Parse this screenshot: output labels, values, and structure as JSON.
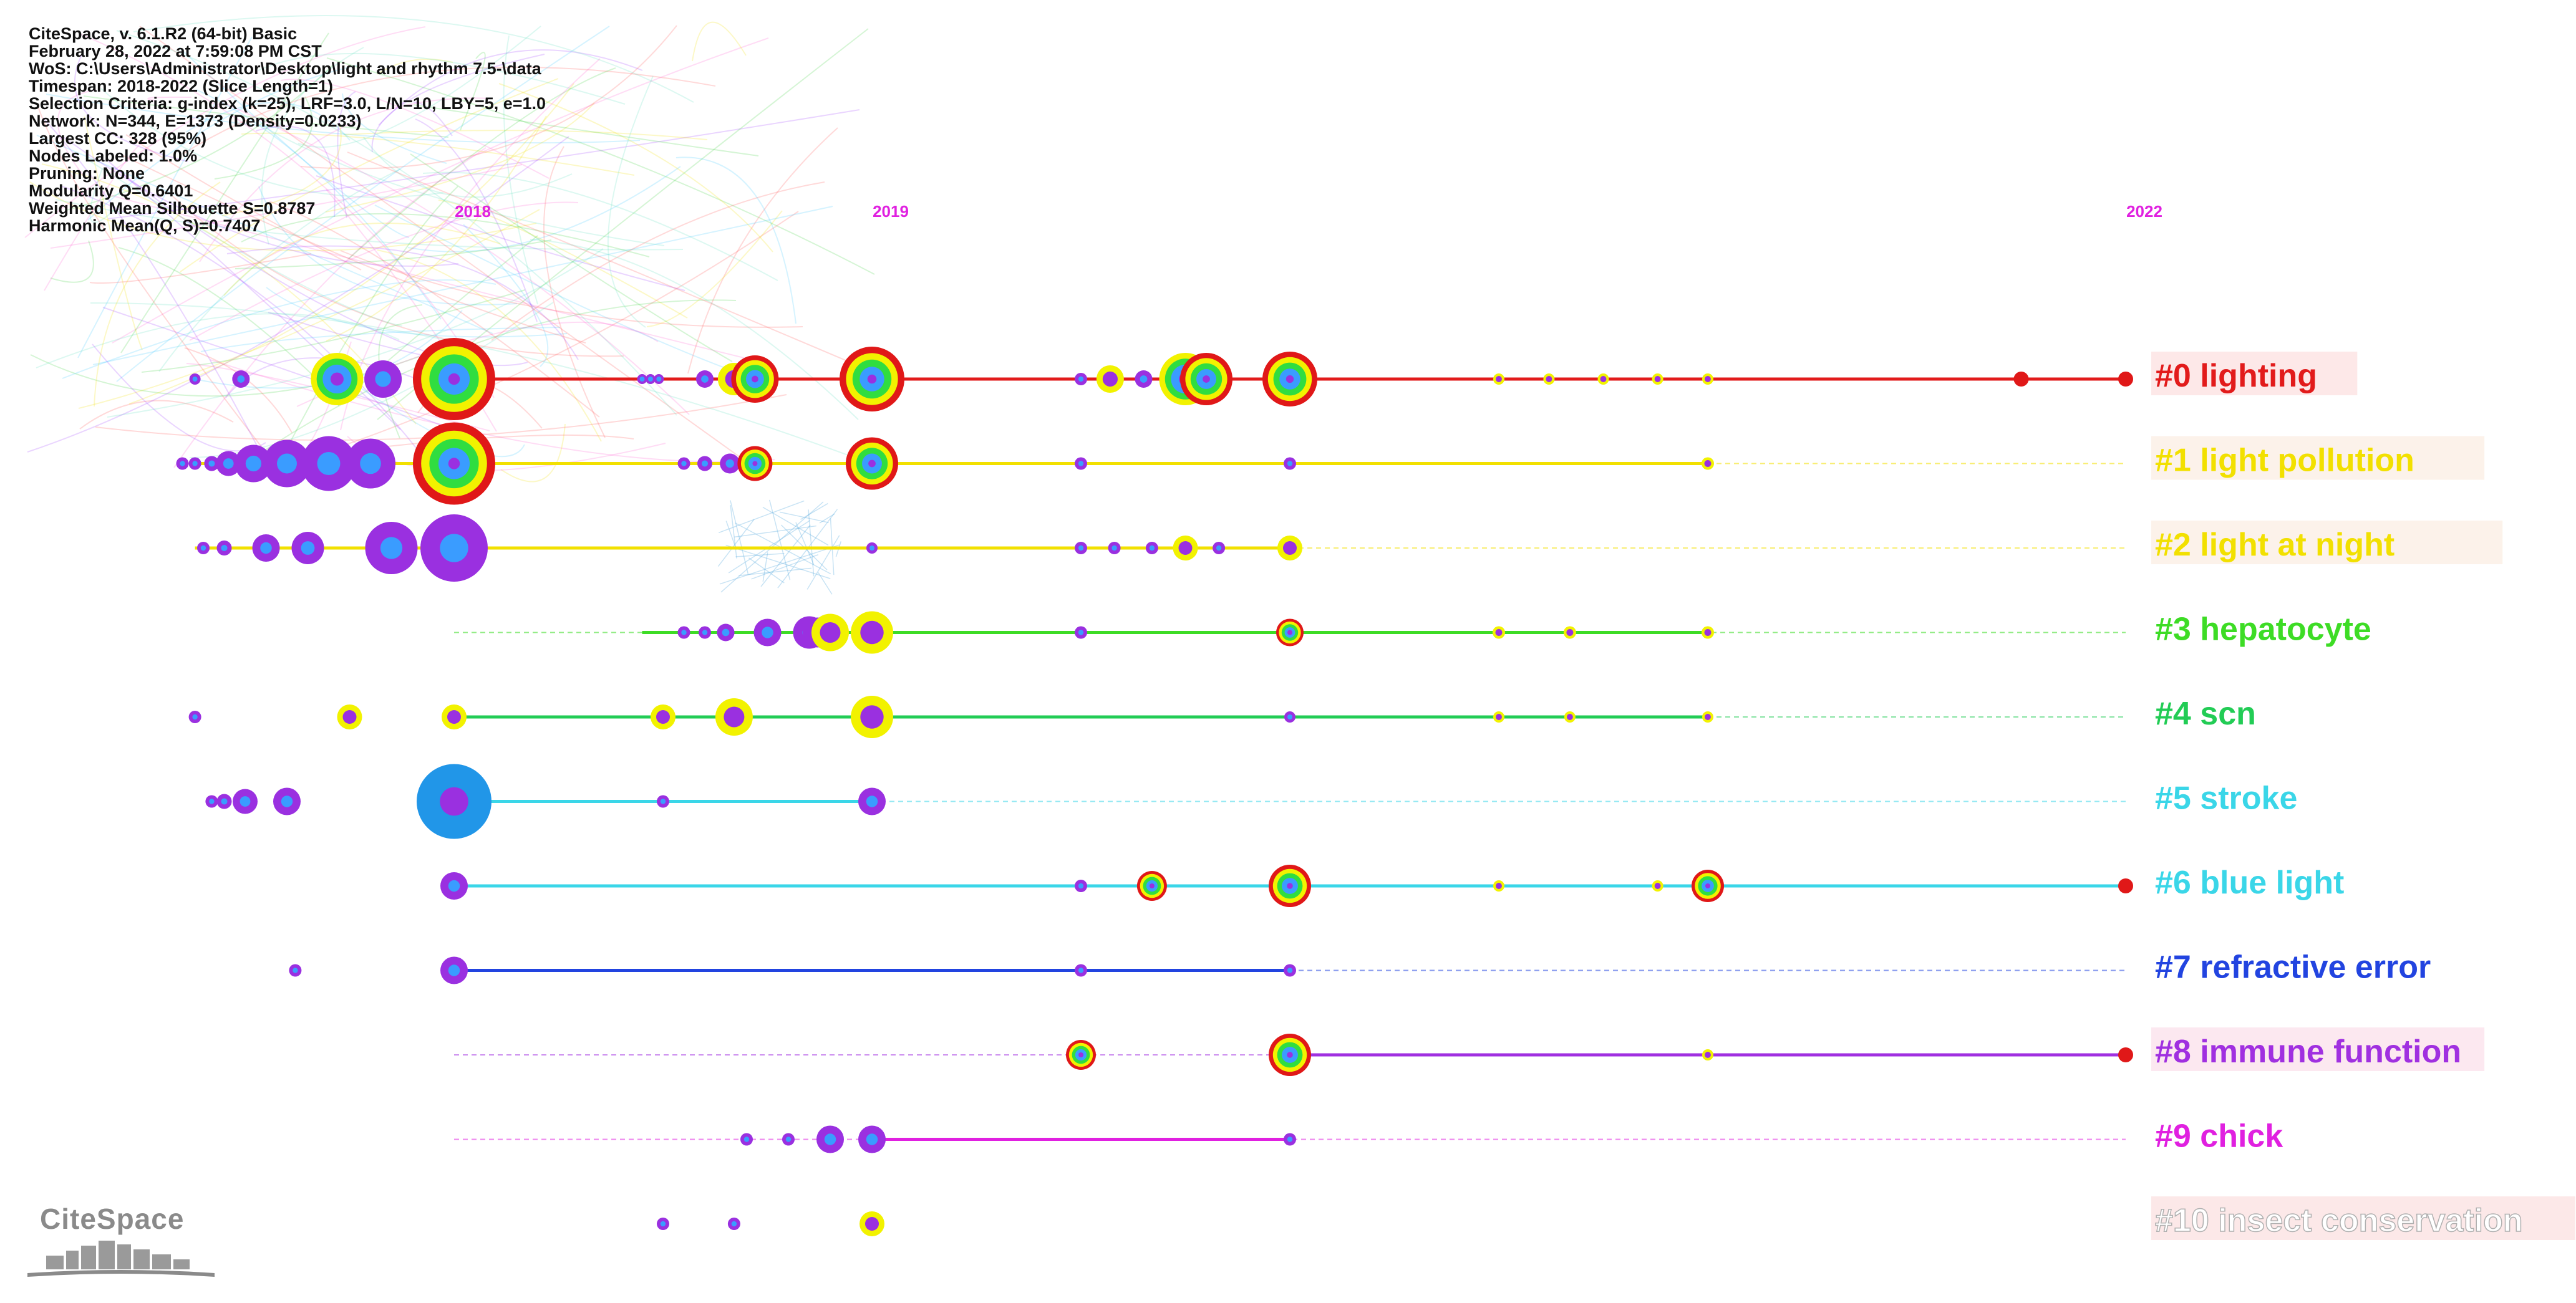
{
  "info": {
    "lines": [
      "CiteSpace, v. 6.1.R2 (64-bit) Basic",
      "February 28, 2022 at 7:59:08 PM CST",
      "WoS: C:\\Users\\Administrator\\Desktop\\light and rhythm 7.5-\\data",
      "Timespan: 2018-2022 (Slice Length=1)",
      "Selection Criteria: g-index (k=25), LRF=3.0, L/N=10, LBY=5, e=1.0",
      "Network: N=344, E=1373 (Density=0.0233)",
      "Largest CC: 328 (95%)",
      "Nodes Labeled: 1.0%",
      "Pruning: None",
      "Modularity Q=0.6401",
      "Weighted Mean Silhouette S=0.8787",
      "Harmonic Mean(Q, S)=0.7407"
    ]
  },
  "logo": {
    "text": "CiteSpace"
  },
  "chart_data": {
    "type": "timeline",
    "x_range": [
      2018,
      2022
    ],
    "year_labels": [
      {
        "year": 2018,
        "label": "2018"
      },
      {
        "year": 2019,
        "label": "2019"
      },
      {
        "year": 2022,
        "label": "2022"
      }
    ],
    "year_label_color": "#e020e0",
    "clusters": [
      {
        "id": 0,
        "label": "#0 lighting",
        "color": "#e21b1b",
        "label_bg": "#fde8e8",
        "solid": [
          2018,
          2022
        ],
        "dashed": [
          2018,
          2022
        ],
        "nodes": [
          [
            2017.38,
            9,
            0
          ],
          [
            2017.49,
            14,
            0
          ],
          [
            2017.72,
            42,
            2
          ],
          [
            2017.83,
            30,
            0
          ],
          [
            2018.0,
            66,
            3
          ],
          [
            2018.45,
            8,
            0
          ],
          [
            2018.47,
            8,
            0
          ],
          [
            2018.49,
            8,
            0
          ],
          [
            2018.6,
            14,
            0
          ],
          [
            2018.67,
            26,
            1
          ],
          [
            2018.72,
            38,
            3
          ],
          [
            2019.0,
            52,
            3
          ],
          [
            2019.5,
            10,
            0
          ],
          [
            2019.57,
            22,
            1
          ],
          [
            2019.65,
            14,
            0
          ],
          [
            2019.75,
            42,
            2
          ],
          [
            2019.8,
            42,
            3
          ],
          [
            2020.0,
            44,
            3
          ],
          [
            2020.5,
            9,
            1
          ],
          [
            2020.62,
            9,
            1
          ],
          [
            2020.75,
            9,
            1
          ],
          [
            2020.88,
            9,
            1
          ],
          [
            2021.0,
            9,
            1
          ],
          [
            2021.75,
            12,
            4
          ],
          [
            2022.0,
            12,
            4
          ]
        ]
      },
      {
        "id": 1,
        "label": "#1 light pollution",
        "color": "#f2e000",
        "label_bg": "#fcf2ea",
        "solid": [
          2017.38,
          2021.0
        ],
        "dashed": [
          2021.0,
          2022.0
        ],
        "nodes": [
          [
            2017.35,
            10,
            0
          ],
          [
            2017.38,
            10,
            0
          ],
          [
            2017.42,
            12,
            0
          ],
          [
            2017.46,
            20,
            0
          ],
          [
            2017.52,
            30,
            0
          ],
          [
            2017.6,
            38,
            0
          ],
          [
            2017.7,
            44,
            0
          ],
          [
            2017.8,
            40,
            0
          ],
          [
            2018.0,
            66,
            3
          ],
          [
            2018.55,
            10,
            0
          ],
          [
            2018.6,
            12,
            0
          ],
          [
            2018.66,
            16,
            0
          ],
          [
            2018.72,
            28,
            3
          ],
          [
            2019.0,
            42,
            3
          ],
          [
            2019.5,
            10,
            0
          ],
          [
            2020.0,
            10,
            0
          ],
          [
            2021.0,
            10,
            1
          ]
        ]
      },
      {
        "id": 2,
        "label": "#2 light   at night",
        "color": "#f2e000",
        "label_bg": "#fcf2ea",
        "solid": [
          2017.38,
          2020.0
        ],
        "dashed": [
          2020.0,
          2022.0
        ],
        "nodes": [
          [
            2017.4,
            10,
            0
          ],
          [
            2017.45,
            12,
            0
          ],
          [
            2017.55,
            22,
            0
          ],
          [
            2017.65,
            26,
            0
          ],
          [
            2017.85,
            42,
            0
          ],
          [
            2018.0,
            54,
            0
          ],
          [
            2019.0,
            9,
            0
          ],
          [
            2019.5,
            10,
            0
          ],
          [
            2019.58,
            10,
            0
          ],
          [
            2019.67,
            10,
            0
          ],
          [
            2019.75,
            20,
            1
          ],
          [
            2019.83,
            10,
            0
          ],
          [
            2020.0,
            20,
            1
          ]
        ]
      },
      {
        "id": 3,
        "label": "#3 hepatocyte",
        "color": "#3ddc25",
        "label_bg": "#ffffff",
        "solid": [
          2018.45,
          2021.0
        ],
        "dashed": [
          2018.0,
          2022.0
        ],
        "nodes": [
          [
            2018.55,
            10,
            0
          ],
          [
            2018.6,
            10,
            0
          ],
          [
            2018.65,
            14,
            0
          ],
          [
            2018.75,
            22,
            0
          ],
          [
            2018.85,
            26,
            0
          ],
          [
            2018.87,
            24,
            0
          ],
          [
            2018.9,
            30,
            1
          ],
          [
            2019.0,
            34,
            1
          ],
          [
            2019.5,
            10,
            0
          ],
          [
            2020.0,
            22,
            3
          ],
          [
            2020.5,
            10,
            1
          ],
          [
            2020.67,
            10,
            1
          ],
          [
            2021.0,
            10,
            1
          ]
        ]
      },
      {
        "id": 4,
        "label": "#4 scn",
        "color": "#22cc55",
        "label_bg": "#ffffff",
        "solid": [
          2018.0,
          2021.0
        ],
        "dashed": [
          2021.0,
          2022.0
        ],
        "nodes": [
          [
            2017.38,
            10,
            0
          ],
          [
            2017.75,
            20,
            1
          ],
          [
            2018.0,
            20,
            1
          ],
          [
            2018.5,
            20,
            1
          ],
          [
            2018.67,
            30,
            1
          ],
          [
            2019.0,
            34,
            1
          ],
          [
            2020.0,
            9,
            0
          ],
          [
            2020.5,
            9,
            1
          ],
          [
            2020.67,
            9,
            1
          ],
          [
            2021.0,
            9,
            1
          ]
        ]
      },
      {
        "id": 5,
        "label": "#5 stroke",
        "color": "#3ad6e8",
        "label_bg": "#ffffff",
        "solid": [
          2018.0,
          2019.0
        ],
        "dashed": [
          2019.0,
          2022.0
        ],
        "nodes": [
          [
            2017.42,
            10,
            0
          ],
          [
            2017.45,
            12,
            0
          ],
          [
            2017.5,
            20,
            0
          ],
          [
            2017.6,
            22,
            0
          ],
          [
            2018.0,
            60,
            5
          ],
          [
            2018.5,
            10,
            0
          ],
          [
            2019.0,
            22,
            0
          ]
        ]
      },
      {
        "id": 6,
        "label": "#6 blue light",
        "color": "#3ad6e8",
        "label_bg": "#ffffff",
        "solid": [
          2018.0,
          2022.0
        ],
        "dashed": [
          2018.0,
          2022.0
        ],
        "nodes": [
          [
            2018.0,
            22,
            0
          ],
          [
            2019.5,
            10,
            0
          ],
          [
            2019.67,
            24,
            3
          ],
          [
            2020.0,
            34,
            3
          ],
          [
            2020.5,
            9,
            1
          ],
          [
            2020.88,
            9,
            1
          ],
          [
            2021.0,
            26,
            3
          ],
          [
            2022.0,
            12,
            4
          ]
        ]
      },
      {
        "id": 7,
        "label": "#7 refractive error",
        "color": "#2244e0",
        "label_bg": "#ffffff",
        "solid": [
          2018.0,
          2020.0
        ],
        "dashed": [
          2020.0,
          2022.0
        ],
        "nodes": [
          [
            2017.62,
            10,
            0
          ],
          [
            2018.0,
            22,
            0
          ],
          [
            2019.5,
            10,
            0
          ],
          [
            2020.0,
            10,
            0
          ]
        ]
      },
      {
        "id": 8,
        "label": "#8 immune function",
        "color": "#a030e0",
        "label_bg": "#fce8f0",
        "solid": [
          2020.0,
          2022.0
        ],
        "dashed": [
          2018.0,
          2020.0
        ],
        "nodes": [
          [
            2019.5,
            24,
            3
          ],
          [
            2020.0,
            34,
            3
          ],
          [
            2021.0,
            9,
            1
          ],
          [
            2022.0,
            12,
            4
          ]
        ]
      },
      {
        "id": 9,
        "label": "#9 chick",
        "color": "#e020e0",
        "label_bg": "#ffffff",
        "solid": [
          2019.0,
          2020.0
        ],
        "dashed": [
          2018.0,
          2022.0
        ],
        "nodes": [
          [
            2018.7,
            10,
            0
          ],
          [
            2018.8,
            10,
            0
          ],
          [
            2018.9,
            22,
            0
          ],
          [
            2019.0,
            22,
            0
          ],
          [
            2020.0,
            10,
            0
          ]
        ]
      },
      {
        "id": 10,
        "label": "#10 insect conservation",
        "color": "#ffffff",
        "label_bg": "#fce8e8",
        "text_stroke": "#b0b0b0",
        "solid": null,
        "dashed": null,
        "nodes": [
          [
            2018.5,
            10,
            0
          ],
          [
            2018.67,
            10,
            0
          ],
          [
            2019.0,
            20,
            1
          ]
        ]
      }
    ]
  }
}
